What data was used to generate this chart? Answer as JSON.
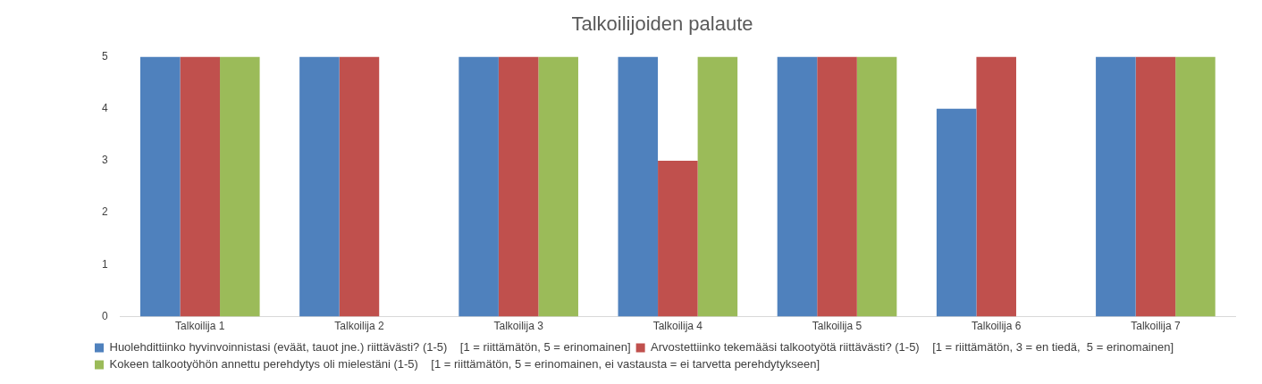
{
  "chart_data": {
    "type": "bar",
    "title": "Talkoilijoiden palaute",
    "categories": [
      "Talkoilija 1",
      "Talkoilija 2",
      "Talkoilija 3",
      "Talkoilija 4",
      "Talkoilija 5",
      "Talkoilija 6",
      "Talkoilija 7"
    ],
    "series": [
      {
        "name": "Huolehdittiinko hyvinvoinnistasi (eväät, tauot jne.) riittävästi? (1-5)    [1 = riittämätön, 5 = erinomainen]",
        "color": "#4f81bd",
        "values": [
          5,
          5,
          5,
          5,
          5,
          4,
          5
        ]
      },
      {
        "name": "Arvostettiinko tekemääsi talkootyötä riittävästi? (1-5)    [1 = riittämätön, 3 = en tiedä,  5 = erinomainen]",
        "color": "#c0504d",
        "values": [
          5,
          5,
          5,
          3,
          5,
          5,
          5
        ]
      },
      {
        "name": "Kokeen talkootyöhön annettu perehdytys oli mielestäni (1-5)    [1 = riittämätön, 5 = erinomainen, ei vastausta = ei tarvetta perehdytykseen]",
        "color": "#9bbb59",
        "values": [
          5,
          null,
          5,
          5,
          5,
          null,
          5
        ]
      }
    ],
    "ylim": [
      0,
      5
    ],
    "yticks": [
      0,
      1,
      2,
      3,
      4,
      5
    ],
    "grid": false,
    "legend": "bottom"
  }
}
